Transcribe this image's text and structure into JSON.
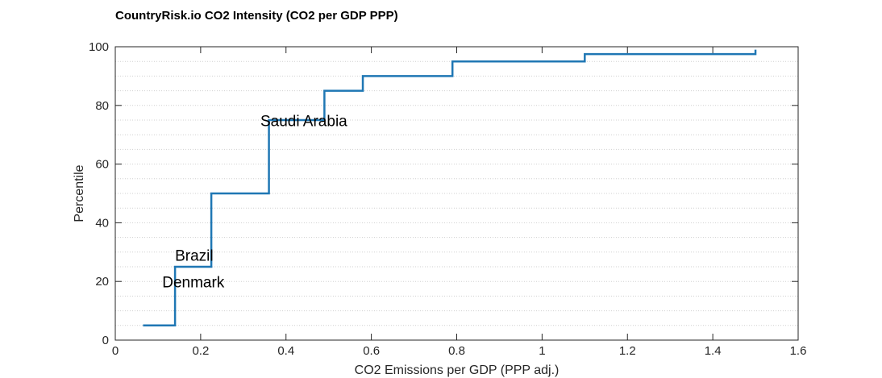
{
  "chart_data": {
    "type": "line",
    "step": "post",
    "title": "CountryRisk.io CO2 Intensity (CO2 per GDP PPP)",
    "xlabel": "CO2 Emissions per GDP (PPP adj.)",
    "ylabel": "Percentile",
    "xlim": [
      0,
      1.6
    ],
    "ylim": [
      0,
      100
    ],
    "xticks": [
      0,
      0.2,
      0.4,
      0.6,
      0.8,
      1,
      1.2,
      1.4,
      1.6
    ],
    "xtick_labels": [
      "0",
      "0.2",
      "0.4",
      "0.6",
      "0.8",
      "1",
      "1.2",
      "1.4",
      "1.6"
    ],
    "yticks": [
      0,
      20,
      40,
      60,
      80,
      100
    ],
    "ytick_labels": [
      "0",
      "20",
      "40",
      "60",
      "80",
      "100"
    ],
    "minor_grid_step": 5,
    "grid": "dotted minor y-grid",
    "series": [
      {
        "color": "#1f77b4",
        "points": [
          [
            0.065,
            5
          ],
          [
            0.14,
            5
          ],
          [
            0.14,
            25
          ],
          [
            0.225,
            25
          ],
          [
            0.225,
            50
          ],
          [
            0.36,
            50
          ],
          [
            0.36,
            75
          ],
          [
            0.49,
            75
          ],
          [
            0.49,
            85
          ],
          [
            0.58,
            85
          ],
          [
            0.58,
            90
          ],
          [
            0.79,
            90
          ],
          [
            0.79,
            95
          ],
          [
            1.1,
            95
          ],
          [
            1.1,
            97.5
          ],
          [
            1.5,
            97.5
          ],
          [
            1.5,
            99
          ]
        ]
      }
    ],
    "annotations": [
      {
        "text": "Saudi Arabia",
        "x": 0.34,
        "y": 73
      },
      {
        "text": "Brazil",
        "x": 0.14,
        "y": 27
      },
      {
        "text": "Denmark",
        "x": 0.11,
        "y": 18
      }
    ]
  }
}
